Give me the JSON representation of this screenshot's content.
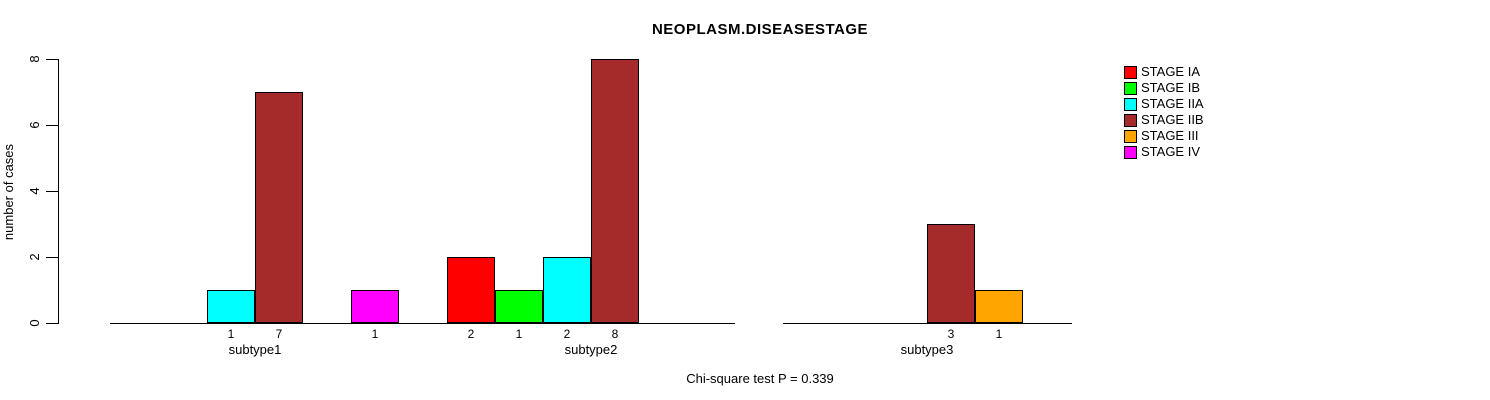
{
  "chart_data": {
    "type": "bar",
    "title": "NEOPLASM.DISEASESTAGE",
    "xlabel": "",
    "ylabel": "number of cases",
    "ylim": [
      0,
      8
    ],
    "yticks": [
      0,
      2,
      4,
      6,
      8
    ],
    "grid": false,
    "legend_position": "right",
    "bar_value_labels": true,
    "annotation": "Chi-square test P = 0.339",
    "categories": [
      "subtype1",
      "subtype2",
      "subtype3"
    ],
    "series": [
      {
        "name": "STAGE IA",
        "color": "#FF0000",
        "values": [
          0,
          2,
          0
        ]
      },
      {
        "name": "STAGE IB",
        "color": "#00FF00",
        "values": [
          0,
          1,
          0
        ]
      },
      {
        "name": "STAGE IIA",
        "color": "#00FFFF",
        "values": [
          1,
          2,
          0
        ]
      },
      {
        "name": "STAGE IIB",
        "color": "#A52A2A",
        "values": [
          7,
          8,
          3
        ]
      },
      {
        "name": "STAGE III",
        "color": "#FFA500",
        "values": [
          0,
          0,
          1
        ]
      },
      {
        "name": "STAGE IV",
        "color": "#FF00FF",
        "values": [
          1,
          0,
          0
        ]
      }
    ]
  }
}
